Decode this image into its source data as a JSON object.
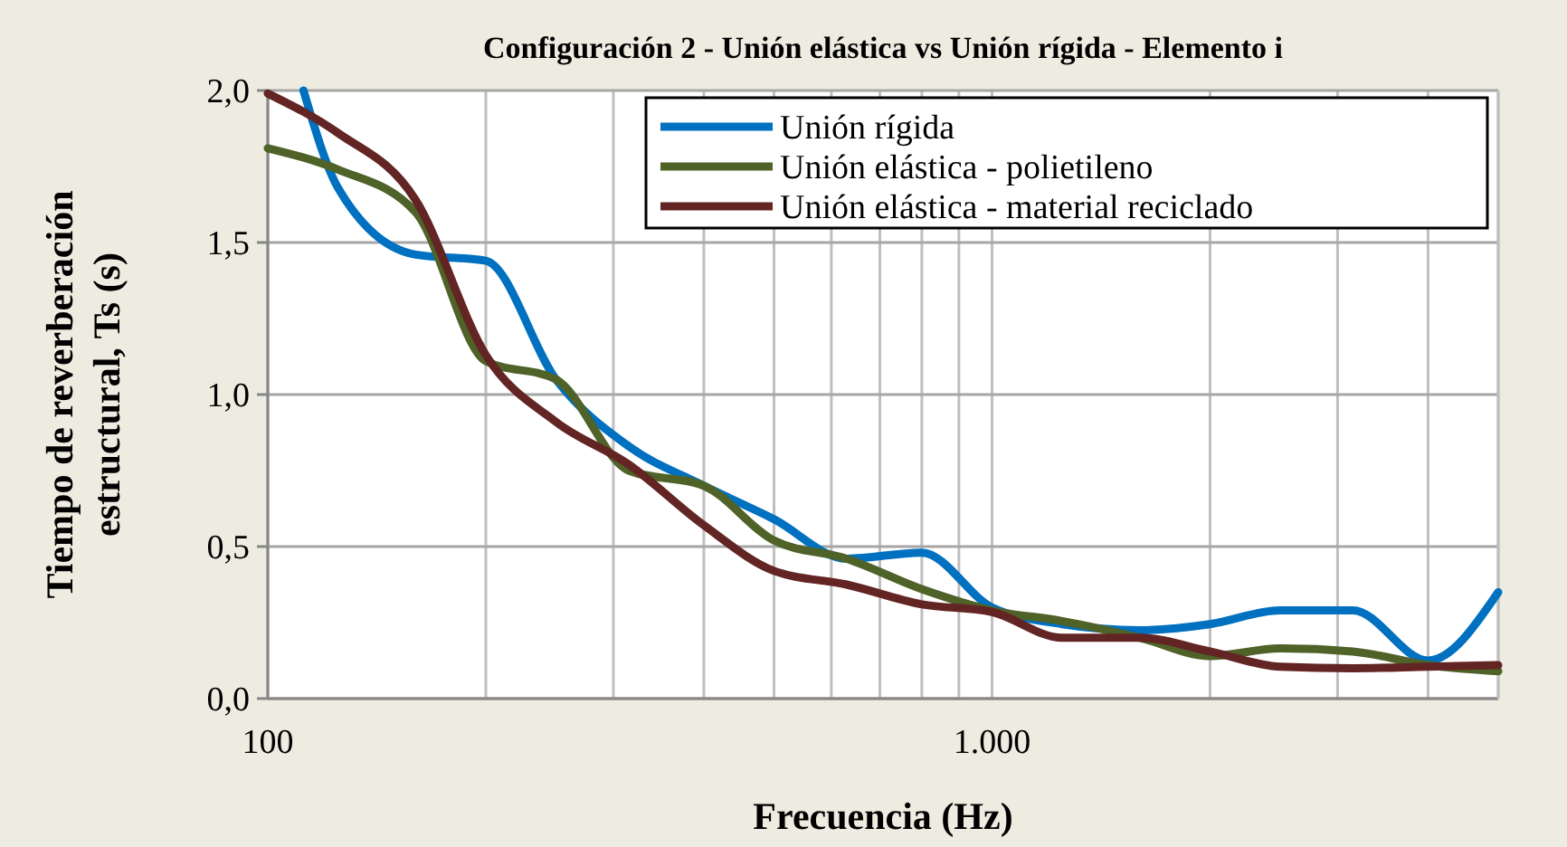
{
  "chart_data": {
    "type": "line",
    "title": "Configuración 2 - Unión elástica vs Unión rígida - Elemento i",
    "xlabel": "Frecuencia (Hz)",
    "ylabel": "Tiempo de reverberación estructural, Ts (s)",
    "x": [
      100,
      125,
      160,
      200,
      250,
      315,
      400,
      500,
      630,
      800,
      1000,
      1250,
      1600,
      2000,
      2500,
      3150,
      4000,
      5000
    ],
    "series": [
      {
        "name": "Unión rígida",
        "color": "#0070c0",
        "x": [
          112,
          125,
          160,
          200,
          250,
          315,
          400,
          500,
          630,
          800,
          1000,
          1250,
          1600,
          2000,
          2500,
          3150,
          4000,
          5000
        ],
        "values": [
          2.0,
          1.68,
          1.46,
          1.44,
          1.05,
          0.83,
          0.7,
          0.59,
          0.46,
          0.48,
          0.3,
          0.245,
          0.225,
          0.245,
          0.29,
          0.29,
          0.125,
          0.35
        ]
      },
      {
        "name": "Unión elástica - polietileno",
        "color": "#4f6228",
        "values": [
          1.81,
          1.74,
          1.6,
          1.11,
          1.05,
          0.75,
          0.7,
          0.52,
          0.46,
          0.36,
          0.29,
          0.255,
          0.2,
          0.14,
          0.165,
          0.155,
          0.11,
          0.09
        ]
      },
      {
        "name": "Unión elástica - material reciclado",
        "color": "#632523",
        "values": [
          1.99,
          1.86,
          1.64,
          1.13,
          0.91,
          0.77,
          0.57,
          0.42,
          0.375,
          0.31,
          0.285,
          0.2,
          0.2,
          0.155,
          0.105,
          0.1,
          0.105,
          0.11
        ]
      }
    ],
    "log": "x",
    "xlim": [
      100,
      5000
    ],
    "xticks": [
      100,
      {
        "value": 200,
        "label": null
      },
      {
        "value": 300,
        "label": null
      },
      {
        "value": 400,
        "label": null
      },
      {
        "value": 500,
        "label": null
      },
      {
        "value": 600,
        "label": null
      },
      {
        "value": 700,
        "label": null
      },
      {
        "value": 800,
        "label": null
      },
      {
        "value": 900,
        "label": null
      },
      {
        "value": 1000,
        "label": "1.000"
      },
      {
        "value": 2000,
        "label": null
      },
      {
        "value": 3000,
        "label": null
      },
      {
        "value": 4000,
        "label": null
      },
      {
        "value": 5000,
        "label": null
      }
    ],
    "ylim": [
      0,
      2
    ],
    "yticks": [
      {
        "value": 0,
        "label": "0,0"
      },
      {
        "value": 0.5,
        "label": "0,5"
      },
      {
        "value": 1,
        "label": "1,0"
      },
      {
        "value": 1.5,
        "label": "1,5"
      },
      {
        "value": 2,
        "label": "2,0"
      }
    ],
    "grid": true,
    "legend": "top right",
    "marker": "none",
    "line_style": "solid"
  }
}
